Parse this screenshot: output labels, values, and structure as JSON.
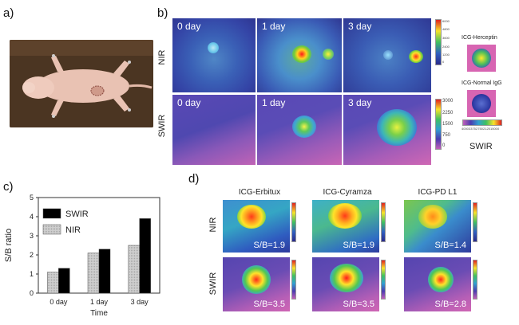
{
  "panels": {
    "a": "a)",
    "b": "b)",
    "c": "c)",
    "d": "d)"
  },
  "panel_b": {
    "rows": [
      "NIR",
      "SWIR"
    ],
    "time_labels": [
      "0 day",
      "1 day",
      "3 day"
    ],
    "nir_colorbar_ticks": [
      "6000",
      "4800",
      "3600",
      "2400",
      "1200",
      "0"
    ],
    "swir_colorbar_ticks": [
      "3000",
      "2250",
      "1500",
      "750",
      "0"
    ],
    "insets": [
      "ICG-Herceptin",
      "ICG-Normal IgG"
    ],
    "horizontal_bar_ticks": [
      "4000",
      "3375",
      "2750",
      "2125",
      "1500",
      "0"
    ],
    "horizontal_bar_label": "SWIR"
  },
  "panel_d": {
    "columns": [
      "ICG-Erbitux",
      "ICG-Cyramza",
      "ICG-PD L1"
    ],
    "rows": [
      "NIR",
      "SWIR"
    ],
    "nir_sb": [
      "S/B=1.9",
      "S/B=1.9",
      "S/B=1.4"
    ],
    "swir_sb": [
      "S/B=3.5",
      "S/B=3.5",
      "S/B=2.8"
    ]
  },
  "chart_data": {
    "type": "bar",
    "categories": [
      "0 day",
      "1 day",
      "3 day"
    ],
    "series": [
      {
        "name": "NIR",
        "values": [
          1.1,
          2.1,
          2.5
        ],
        "color": "#cfcfcf"
      },
      {
        "name": "SWIR",
        "values": [
          1.3,
          2.3,
          3.9
        ],
        "color": "#000000"
      }
    ],
    "xlabel": "Time",
    "ylabel": "S/B ratio",
    "ylim": [
      0,
      5
    ],
    "yticks": [
      "0",
      "1",
      "2",
      "3",
      "4",
      "5"
    ],
    "legend": "top-left",
    "grid": false
  }
}
